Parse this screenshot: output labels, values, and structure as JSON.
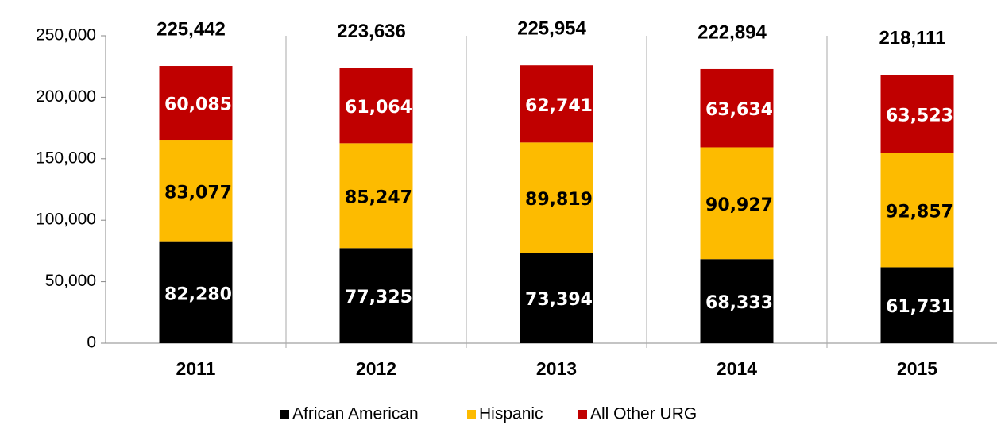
{
  "chart_data": {
    "type": "stacked_bar",
    "categories": [
      "2011",
      "2012",
      "2013",
      "2014",
      "2015"
    ],
    "series": [
      {
        "name": "African American",
        "color": "#000000",
        "values": [
          82280,
          77325,
          73394,
          68333,
          61731
        ],
        "value_labels": [
          "82,280",
          "77,325",
          "73,394",
          "68,333",
          "61,731"
        ]
      },
      {
        "name": "Hispanic",
        "color": "#fdbb00",
        "values": [
          83077,
          85247,
          89819,
          90927,
          92857
        ],
        "value_labels": [
          "83,077",
          "85,247",
          "89,819",
          "90,927",
          "92,857"
        ]
      },
      {
        "name": "All Other URG",
        "color": "#c00000",
        "values": [
          60085,
          61064,
          62741,
          63634,
          63523
        ],
        "value_labels": [
          "60,085",
          "61,064",
          "62,741",
          "63,634",
          "63,523"
        ]
      }
    ],
    "totals": [
      225442,
      223636,
      225954,
      222894,
      218111
    ],
    "total_labels": [
      "225,442",
      "223,636",
      "225,954",
      "222,894",
      "218,111"
    ],
    "ylim": [
      0,
      250000
    ],
    "yticks": [
      0,
      {
        "value": 50000,
        "label": "50,000"
      },
      {
        "value": 100000,
        "label": "100,000"
      },
      {
        "value": 150000,
        "label": "150,000"
      },
      {
        "value": 200000,
        "label": "200,000"
      },
      {
        "value": 250000,
        "label": "250,000"
      }
    ],
    "legend": "bottom"
  }
}
